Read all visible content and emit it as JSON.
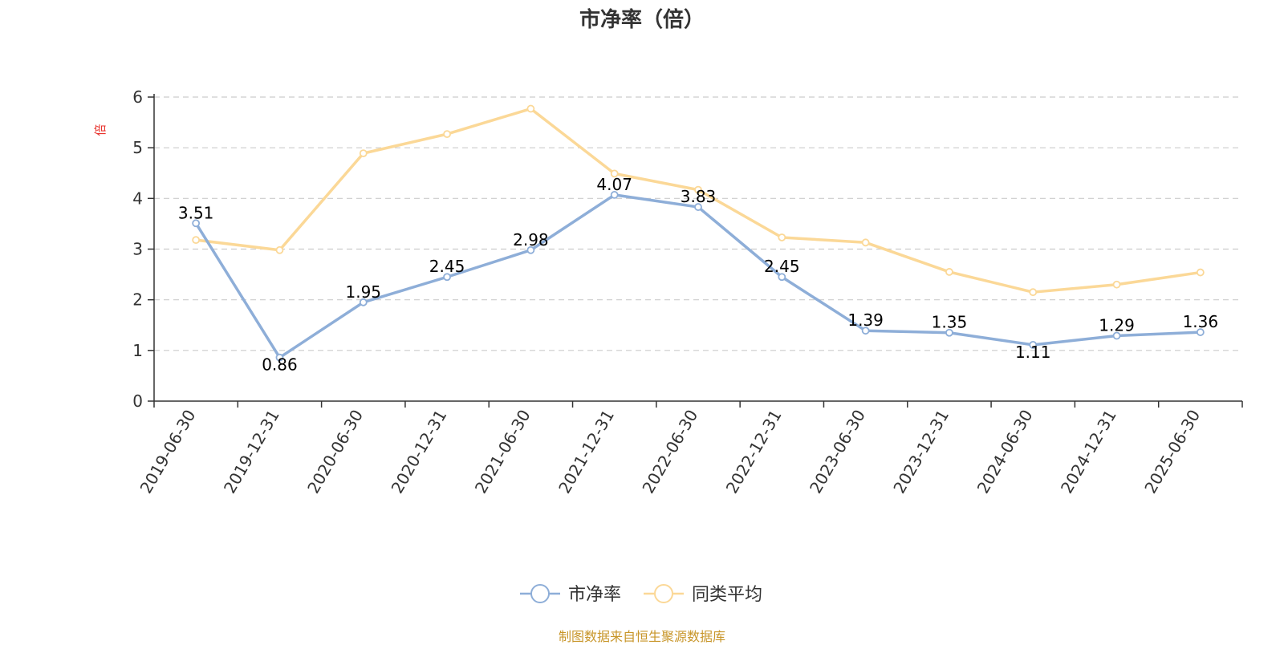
{
  "chart_data": {
    "type": "line",
    "title": "市净率（倍）",
    "ylabel": "倍",
    "xlabel": "",
    "categories": [
      "2019-06-30",
      "2019-12-31",
      "2020-06-30",
      "2020-12-31",
      "2021-06-30",
      "2021-12-31",
      "2022-06-30",
      "2022-12-31",
      "2023-06-30",
      "2023-12-31",
      "2024-06-30",
      "2024-12-31",
      "2025-06-30"
    ],
    "series": [
      {
        "name": "市净率",
        "color": "#8eaed8",
        "values": [
          3.51,
          0.86,
          1.95,
          2.45,
          2.98,
          4.07,
          3.83,
          2.45,
          1.39,
          1.35,
          1.11,
          1.29,
          1.36
        ],
        "data_labels": [
          "3.51",
          "0.86",
          "1.95",
          "2.45",
          "2.98",
          "4.07",
          "3.83",
          "2.45",
          "1.39",
          "1.35",
          "1.11",
          "1.29",
          "1.36"
        ]
      },
      {
        "name": "同类平均",
        "color": "#fbd897",
        "values": [
          3.18,
          2.98,
          4.89,
          5.27,
          5.77,
          4.49,
          4.17,
          3.23,
          3.13,
          2.55,
          2.15,
          2.3,
          2.54
        ]
      }
    ],
    "ylim": [
      0,
      6
    ],
    "yticks": [
      "0",
      "1",
      "2",
      "3",
      "4",
      "5",
      "6"
    ],
    "grid": true,
    "legend_position": "bottom-center",
    "ylabel_color": "#e8322c"
  },
  "source_note": "制图数据来自恒生聚源数据库",
  "source_color": "#c8962a"
}
